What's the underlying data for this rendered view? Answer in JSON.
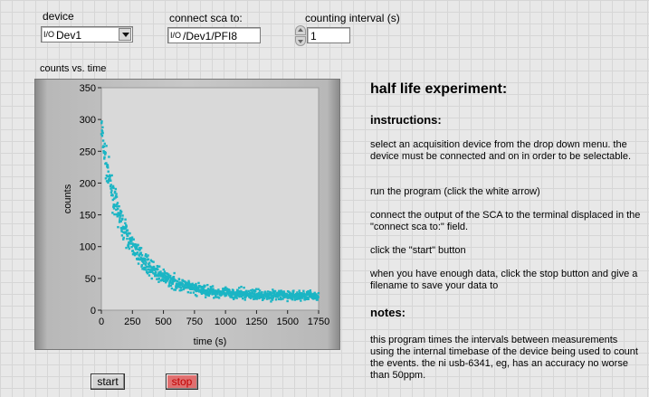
{
  "controls": {
    "device_label": "device",
    "device_value": "Dev1",
    "sca_label": "connect sca to:",
    "sca_value": "/Dev1/PFI8",
    "interval_label": "counting interval (s)",
    "interval_value": "1",
    "io_icon_text": "I/O"
  },
  "graph": {
    "title": "counts vs. time",
    "plot_color": "#1bb5c4"
  },
  "chart_data": {
    "type": "scatter",
    "title": "counts vs. time",
    "xlabel": "time (s)",
    "ylabel": "counts",
    "xlim": [
      0,
      1750
    ],
    "ylim": [
      0,
      350
    ],
    "x_ticks": [
      "0",
      "250",
      "500",
      "750",
      "1000",
      "1250",
      "1500",
      "1750"
    ],
    "y_ticks": [
      "0",
      "50",
      "100",
      "150",
      "200",
      "250",
      "300",
      "350"
    ],
    "grid": false,
    "series": [
      {
        "model": "exponential decay plus background",
        "x": [
          0,
          10,
          20,
          30,
          40,
          60,
          80,
          100,
          125,
          150,
          175,
          200,
          250,
          300,
          350,
          400,
          450,
          500,
          600,
          700,
          800,
          900,
          1000,
          1100,
          1200,
          1300,
          1400,
          1500,
          1600,
          1700
        ],
        "y": [
          290,
          270,
          255,
          240,
          228,
          210,
          192,
          176,
          160,
          145,
          131,
          120,
          102,
          88,
          76,
          66,
          58,
          52,
          43,
          36,
          32,
          29,
          27,
          26,
          25,
          24,
          24,
          23,
          23,
          23
        ]
      }
    ]
  },
  "instructions": {
    "heading": "half life experiment:",
    "instructions_title": "instructions:",
    "p1": "select an acquisition device from the drop down menu. the device must be connected and on in order to be selectable.",
    "p2": "run the program (click the white arrow)",
    "p3": "connect the output of the SCA to the terminal displaced in the \"connect sca to:\" field.",
    "p4": "click the \"start\" button",
    "p5": "when you have enough data, click the stop button and give a filename to save your data to",
    "notes_title": "notes:",
    "notes": "this program times the intervals between measurements using the internal timebase of the device being used to count the events. the ni usb-6341, eg, has an accuracy no worse than 50ppm."
  },
  "buttons": {
    "start": "start",
    "stop": "stop"
  }
}
